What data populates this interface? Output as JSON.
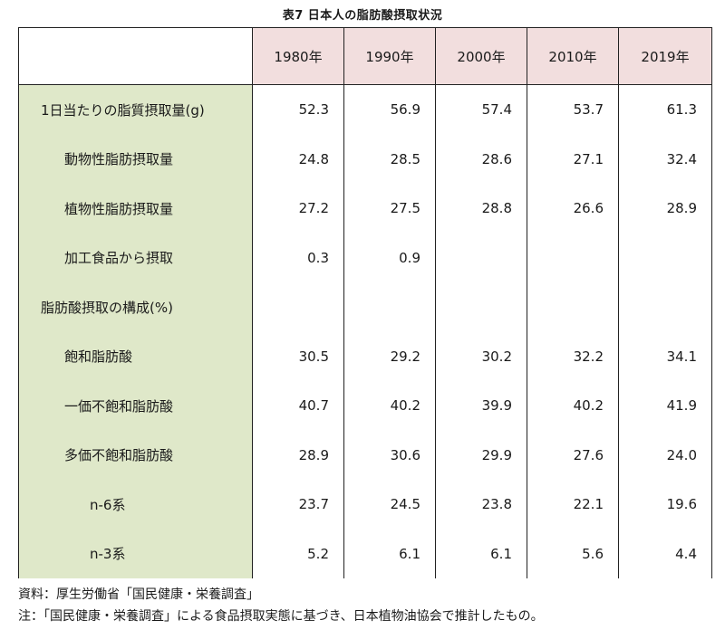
{
  "title": "表7 日本人の脂肪酸摂取状況",
  "table": {
    "years": [
      "1980年",
      "1990年",
      "2000年",
      "2010年",
      "2019年"
    ],
    "rows": [
      {
        "label": "1日当たりの脂質摂取量(g)",
        "indent": 0,
        "values": [
          "52.3",
          "56.9",
          "57.4",
          "53.7",
          "61.3"
        ]
      },
      {
        "label": "動物性脂肪摂取量",
        "indent": 1,
        "values": [
          "24.8",
          "28.5",
          "28.6",
          "27.1",
          "32.4"
        ]
      },
      {
        "label": "植物性脂肪摂取量",
        "indent": 1,
        "values": [
          "27.2",
          "27.5",
          "28.8",
          "26.6",
          "28.9"
        ]
      },
      {
        "label": "加工食品から摂取",
        "indent": 1,
        "values": [
          "0.3",
          "0.9",
          "",
          "",
          ""
        ]
      },
      {
        "label": "脂肪酸摂取の構成(%)",
        "indent": 0,
        "values": [
          "",
          "",
          "",
          "",
          ""
        ]
      },
      {
        "label": "飽和脂肪酸",
        "indent": 1,
        "values": [
          "30.5",
          "29.2",
          "30.2",
          "32.2",
          "34.1"
        ]
      },
      {
        "label": "一価不飽和脂肪酸",
        "indent": 1,
        "values": [
          "40.7",
          "40.2",
          "39.9",
          "40.2",
          "41.9"
        ]
      },
      {
        "label": "多価不飽和脂肪酸",
        "indent": 1,
        "values": [
          "28.9",
          "30.6",
          "29.9",
          "27.6",
          "24.0"
        ]
      },
      {
        "label": "n-6系",
        "indent": 2,
        "values": [
          "23.7",
          "24.5",
          "23.8",
          "22.1",
          "19.6"
        ]
      },
      {
        "label": "n-3系",
        "indent": 2,
        "values": [
          "5.2",
          "6.1",
          "6.1",
          "5.6",
          "4.4"
        ]
      }
    ]
  },
  "footnotes": {
    "source": "資料：厚生労働省「国民健康・栄養調査」",
    "note": "注：「国民健康・栄養調査」による食品摂取実態に基づき、日本植物油協会で推計したもの。"
  }
}
